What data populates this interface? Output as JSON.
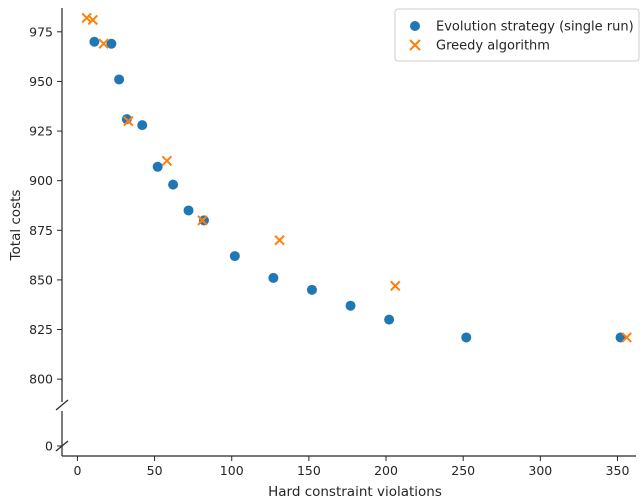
{
  "chart_data": {
    "type": "scatter",
    "xlabel": "Hard constraint violations",
    "ylabel": "Total costs",
    "xlim": [
      -10,
      362
    ],
    "ylim_upper": [
      790,
      987
    ],
    "ylim_lower_break_tick": 0,
    "x_ticks": [
      0,
      50,
      100,
      150,
      200,
      250,
      300,
      350
    ],
    "y_ticks": [
      800,
      825,
      850,
      875,
      900,
      925,
      950,
      975
    ],
    "y_ticks_lower": [
      0
    ],
    "grid": false,
    "broken_y_axis": true,
    "legend_position": "top-right",
    "series": [
      {
        "name": "Evolution strategy (single run)",
        "marker": "circle",
        "color": "#1f77b4",
        "points": [
          {
            "x": 11,
            "y": 970
          },
          {
            "x": 22,
            "y": 969
          },
          {
            "x": 27,
            "y": 951
          },
          {
            "x": 32,
            "y": 931
          },
          {
            "x": 42,
            "y": 928
          },
          {
            "x": 52,
            "y": 907
          },
          {
            "x": 62,
            "y": 898
          },
          {
            "x": 72,
            "y": 885
          },
          {
            "x": 82,
            "y": 880
          },
          {
            "x": 102,
            "y": 862
          },
          {
            "x": 127,
            "y": 851
          },
          {
            "x": 152,
            "y": 845
          },
          {
            "x": 177,
            "y": 837
          },
          {
            "x": 202,
            "y": 830
          },
          {
            "x": 252,
            "y": 821
          },
          {
            "x": 352,
            "y": 821
          }
        ]
      },
      {
        "name": "Greedy algorithm",
        "marker": "x",
        "color": "#ff7f0e",
        "points": [
          {
            "x": 6,
            "y": 982
          },
          {
            "x": 10,
            "y": 981
          },
          {
            "x": 17,
            "y": 969
          },
          {
            "x": 33,
            "y": 930
          },
          {
            "x": 58,
            "y": 910
          },
          {
            "x": 81,
            "y": 880
          },
          {
            "x": 131,
            "y": 870
          },
          {
            "x": 206,
            "y": 847
          },
          {
            "x": 356,
            "y": 821
          }
        ]
      }
    ]
  }
}
